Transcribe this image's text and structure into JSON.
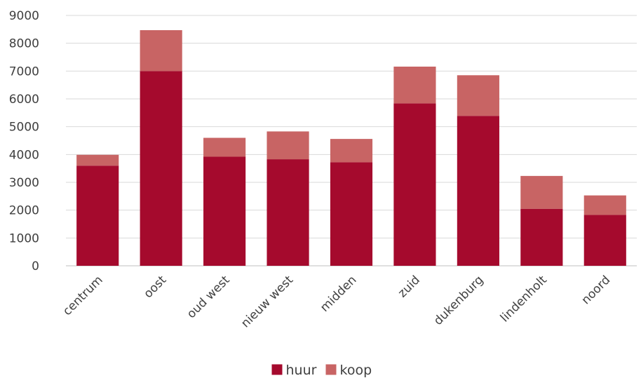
{
  "chart_data": {
    "type": "bar",
    "stacked": true,
    "title": "",
    "xlabel": "",
    "ylabel": "",
    "ylim": [
      0,
      9000
    ],
    "yticks": [
      0,
      1000,
      2000,
      3000,
      4000,
      5000,
      6000,
      7000,
      8000,
      9000
    ],
    "grid": true,
    "legend_position": "bottom",
    "categories": [
      "centrum",
      "oost",
      "oud west",
      "nieuw west",
      "midden",
      "zuid",
      "dukenburg",
      "lindenholt",
      "noord"
    ],
    "series": [
      {
        "name": "huur",
        "color": "#a50a2d",
        "values": [
          3600,
          7000,
          3920,
          3830,
          3720,
          5840,
          5390,
          2050,
          1830
        ]
      },
      {
        "name": "koop",
        "color": "#c86464",
        "values": [
          390,
          1470,
          680,
          1000,
          840,
          1320,
          1460,
          1180,
          700
        ]
      }
    ]
  }
}
